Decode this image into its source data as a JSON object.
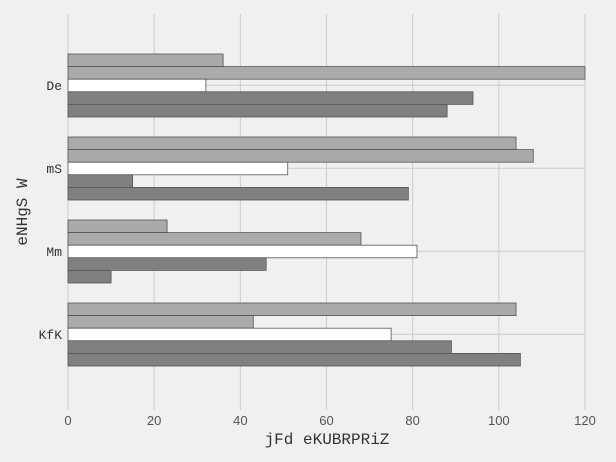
{
  "chart_data": {
    "type": "bar",
    "orientation": "horizontal",
    "xlabel": "jFd eKUBRPRiZ",
    "ylabel": "eNHgS W",
    "xlim": [
      0,
      120
    ],
    "x_ticks": [
      0,
      20,
      40,
      60,
      80,
      100,
      120
    ],
    "grid": true,
    "categories": [
      "De",
      "mS",
      "Mm",
      "KfK"
    ],
    "series": [
      {
        "color": "#aaaaaa",
        "values": [
          36,
          104,
          23,
          104
        ]
      },
      {
        "color": "#aaaaaa",
        "values": [
          120,
          108,
          68,
          43
        ]
      },
      {
        "color": "#ffffff",
        "values": [
          32,
          51,
          81,
          75
        ]
      },
      {
        "color": "#808080",
        "values": [
          94,
          15,
          46,
          89
        ]
      },
      {
        "color": "#808080",
        "values": [
          88,
          79,
          10,
          105
        ]
      }
    ]
  }
}
